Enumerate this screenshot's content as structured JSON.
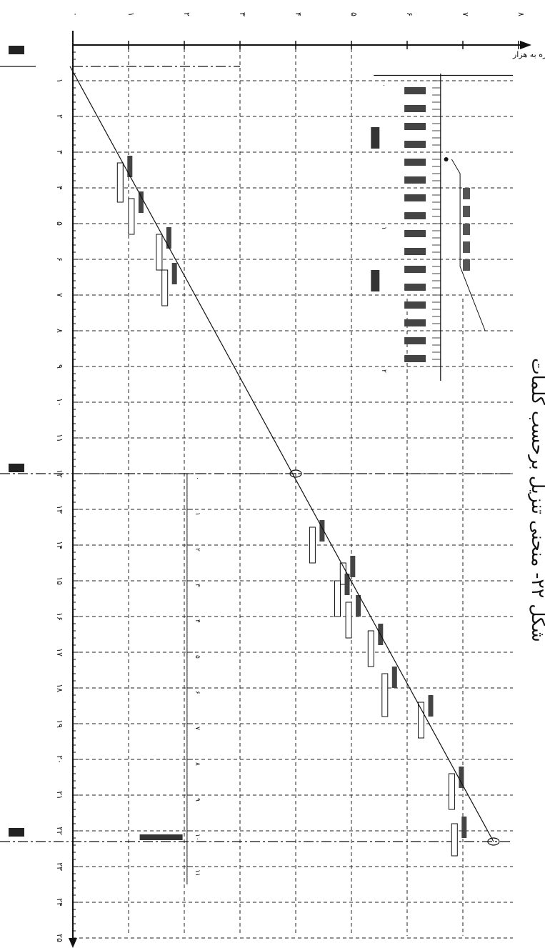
{
  "chart_data": {
    "type": "line",
    "title": "شکل ۲۲- منحنی تنزیل برحسب کلمات",
    "ylabel": "جمع کلمات تازه به هزار",
    "x_ticks": [
      "۱",
      "۲",
      "۳",
      "۴",
      "۵",
      "۶",
      "۷",
      "۸",
      "۹",
      "۱۰",
      "۱۱",
      "۱۲",
      "۱۳",
      "۱۴",
      "۱۵",
      "۱۶",
      "۱۷",
      "۱۸",
      "۱۹",
      "۲۰",
      "۲۱",
      "۲۲",
      "۲۳",
      "۲۴",
      "۲۵"
    ],
    "y_ticks": [
      "۰",
      "۱",
      "۲",
      "۳",
      "۴",
      "۵",
      "۶",
      "۷",
      "۸"
    ],
    "xlim": [
      0,
      25
    ],
    "ylim": [
      0,
      8
    ],
    "trend": {
      "x": [
        0.6,
        22.3
      ],
      "y": [
        -0.05,
        7.55
      ]
    },
    "milestones": [
      12,
      22.3
    ],
    "upper_segment_labels": [
      "۰",
      "۱",
      "۲",
      "۳",
      "۴",
      "۵",
      "۶",
      "۷",
      "۸",
      "۹",
      "۱۰",
      "۱۱"
    ],
    "inset": {
      "scale_labels": [
        "۰",
        "۱",
        "۲"
      ]
    },
    "bars": [
      {
        "x": 3.3,
        "len": 1.1,
        "y": 0.85
      },
      {
        "x": 4.3,
        "len": 1.0,
        "y": 1.05
      },
      {
        "x": 5.3,
        "len": 1.0,
        "y": 1.55
      },
      {
        "x": 6.3,
        "len": 1.0,
        "y": 1.65
      },
      {
        "x": 13.5,
        "len": 1.0,
        "y": 4.3
      },
      {
        "x": 14.5,
        "len": 0.6,
        "y": 4.85
      },
      {
        "x": 15.0,
        "len": 1.0,
        "y": 4.75
      },
      {
        "x": 15.6,
        "len": 1.0,
        "y": 4.95
      },
      {
        "x": 16.4,
        "len": 1.0,
        "y": 5.35
      },
      {
        "x": 17.6,
        "len": 1.2,
        "y": 5.6
      },
      {
        "x": 18.4,
        "len": 1.0,
        "y": 6.25
      },
      {
        "x": 20.4,
        "len": 1.0,
        "y": 6.8
      },
      {
        "x": 21.8,
        "len": 0.9,
        "y": 6.85
      }
    ],
    "grid": true
  }
}
